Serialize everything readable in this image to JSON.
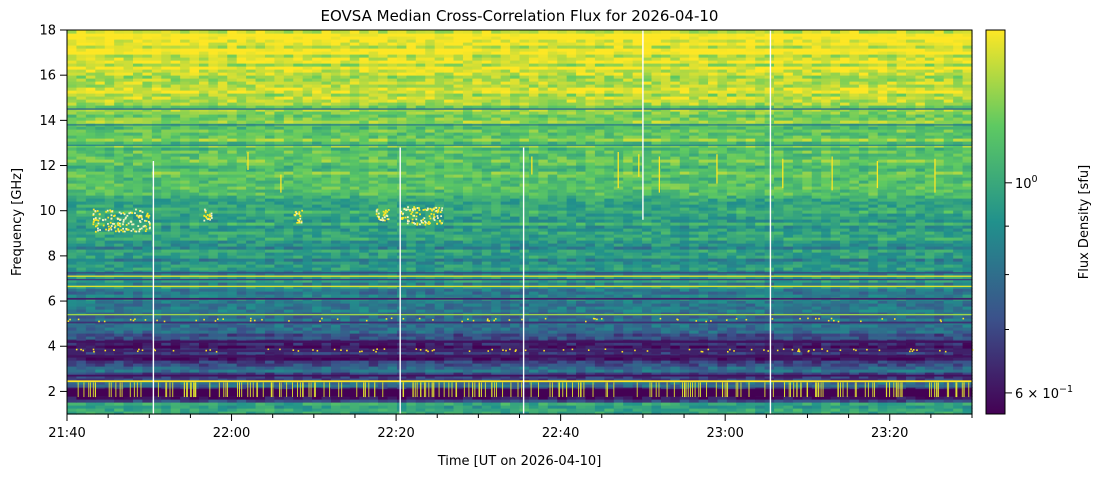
{
  "chart_data": {
    "type": "heatmap",
    "title": "EOVSA Median Cross-Correlation Flux for 2026-04-10",
    "xlabel": "Time [UT on 2026-04-10]",
    "ylabel": "Frequency [GHz]",
    "colorbar_label": "Flux Density [sfu]",
    "colormap": "viridis",
    "colormap_colors": [
      "#440154",
      "#3b528b",
      "#21918c",
      "#5ec962",
      "#fde725"
    ],
    "x_start_minutes": 1300,
    "x_end_minutes": 1410,
    "x_ticks": [
      {
        "minutes": 1300,
        "label": "21:40"
      },
      {
        "minutes": 1320,
        "label": "22:00"
      },
      {
        "minutes": 1340,
        "label": "22:20"
      },
      {
        "minutes": 1360,
        "label": "22:40"
      },
      {
        "minutes": 1380,
        "label": "23:00"
      },
      {
        "minutes": 1400,
        "label": "23:20"
      }
    ],
    "x_minor_step_minutes": 5,
    "ylim": [
      1.0,
      18.0
    ],
    "y_ticks": [
      {
        "value": 2,
        "label": "2"
      },
      {
        "value": 4,
        "label": "4"
      },
      {
        "value": 6,
        "label": "6"
      },
      {
        "value": 8,
        "label": "8"
      },
      {
        "value": 10,
        "label": "10"
      },
      {
        "value": 12,
        "label": "12"
      },
      {
        "value": 14,
        "label": "14"
      },
      {
        "value": 16,
        "label": "16"
      },
      {
        "value": 18,
        "label": "18"
      }
    ],
    "colorbar_range": [
      0.57,
      1.45
    ],
    "colorbar_scale": "log",
    "colorbar_ticks": [
      {
        "value": 0.6,
        "base": "6 × 10",
        "exp": "−1"
      },
      {
        "value": 1.0,
        "base": "10",
        "exp": "0"
      }
    ],
    "colorbar_minor_ticks": [
      0.7,
      0.8,
      0.9
    ],
    "frequency_profile": [
      {
        "freq": 1.0,
        "level": 0.55
      },
      {
        "freq": 1.4,
        "level": 0.62
      },
      {
        "freq": 1.6,
        "level": 0.3
      },
      {
        "freq": 1.8,
        "level": 0.05
      },
      {
        "freq": 2.1,
        "level": 0.05
      },
      {
        "freq": 2.3,
        "level": 0.5
      },
      {
        "freq": 2.6,
        "level": 0.2
      },
      {
        "freq": 3.0,
        "level": 0.38
      },
      {
        "freq": 3.5,
        "level": 0.1
      },
      {
        "freq": 4.0,
        "level": 0.08
      },
      {
        "freq": 4.5,
        "level": 0.3
      },
      {
        "freq": 5.5,
        "level": 0.42
      },
      {
        "freq": 6.5,
        "level": 0.45
      },
      {
        "freq": 7.0,
        "level": 0.5
      },
      {
        "freq": 8.0,
        "level": 0.5
      },
      {
        "freq": 9.0,
        "level": 0.55
      },
      {
        "freq": 10.0,
        "level": 0.62
      },
      {
        "freq": 11.0,
        "level": 0.68
      },
      {
        "freq": 12.0,
        "level": 0.72
      },
      {
        "freq": 13.0,
        "level": 0.75
      },
      {
        "freq": 14.0,
        "level": 0.78
      },
      {
        "freq": 15.0,
        "level": 0.86
      },
      {
        "freq": 16.0,
        "level": 0.92
      },
      {
        "freq": 17.0,
        "level": 0.96
      },
      {
        "freq": 18.0,
        "level": 0.98
      }
    ],
    "horizontal_features": [
      {
        "freq": 1.95,
        "width": 0.3,
        "level": 0.0
      },
      {
        "freq": 2.45,
        "width": 0.08,
        "level": 1.0
      },
      {
        "freq": 2.7,
        "width": 0.08,
        "level": 0.05
      },
      {
        "freq": 3.55,
        "width": 0.1,
        "level": 0.05
      },
      {
        "freq": 3.8,
        "width": 0.12,
        "level": 0.1
      },
      {
        "freq": 4.2,
        "width": 0.1,
        "level": 0.05
      },
      {
        "freq": 5.05,
        "width": 0.08,
        "level": 0.15
      },
      {
        "freq": 5.4,
        "width": 0.06,
        "level": 0.85
      },
      {
        "freq": 6.1,
        "width": 0.08,
        "level": 0.1
      },
      {
        "freq": 6.65,
        "width": 0.06,
        "level": 0.95
      },
      {
        "freq": 6.95,
        "width": 0.06,
        "level": 0.2
      },
      {
        "freq": 7.1,
        "width": 0.06,
        "level": 0.95
      },
      {
        "freq": 7.25,
        "width": 0.05,
        "level": 0.2
      },
      {
        "freq": 14.5,
        "width": 0.06,
        "level": 0.35
      },
      {
        "freq": 13.8,
        "width": 0.05,
        "level": 0.4
      },
      {
        "freq": 12.9,
        "width": 0.05,
        "level": 0.45
      }
    ],
    "rfi_clusters": [
      {
        "start_minutes": 1303,
        "end_minutes": 1310,
        "freq_low": 9.1,
        "freq_high": 10.1
      },
      {
        "start_minutes": 1316.5,
        "end_minutes": 1317.5,
        "freq_low": 9.6,
        "freq_high": 10.1
      },
      {
        "start_minutes": 1327.5,
        "end_minutes": 1328.5,
        "freq_low": 9.5,
        "freq_high": 10.1
      },
      {
        "start_minutes": 1337.5,
        "end_minutes": 1339,
        "freq_low": 9.6,
        "freq_high": 10.1
      },
      {
        "start_minutes": 1340.5,
        "end_minutes": 1345.5,
        "freq_low": 9.4,
        "freq_high": 10.2
      }
    ],
    "rfi_streaks": [
      {
        "minutes": 1322,
        "freq_low": 11.8,
        "freq_high": 12.6
      },
      {
        "minutes": 1367,
        "freq_low": 11.0,
        "freq_high": 12.6
      },
      {
        "minutes": 1369.5,
        "freq_low": 11.5,
        "freq_high": 12.5
      },
      {
        "minutes": 1372,
        "freq_low": 10.8,
        "freq_high": 12.4
      },
      {
        "minutes": 1379,
        "freq_low": 11.2,
        "freq_high": 12.5
      },
      {
        "minutes": 1387,
        "freq_low": 11.0,
        "freq_high": 12.3
      },
      {
        "minutes": 1393,
        "freq_low": 10.9,
        "freq_high": 12.4
      },
      {
        "minutes": 1398.5,
        "freq_low": 11.0,
        "freq_high": 12.2
      },
      {
        "minutes": 1405.5,
        "freq_low": 10.8,
        "freq_high": 12.3
      },
      {
        "minutes": 1356.5,
        "freq_low": 11.6,
        "freq_high": 12.4
      },
      {
        "minutes": 1326,
        "freq_low": 10.8,
        "freq_high": 11.6
      }
    ],
    "data_gaps": [
      {
        "minutes": 1310.5,
        "freq_low": 1.0,
        "freq_high": 12.2
      },
      {
        "minutes": 1340.5,
        "freq_low": 1.0,
        "freq_high": 12.8
      },
      {
        "minutes": 1355.5,
        "freq_low": 1.0,
        "freq_high": 12.8
      },
      {
        "minutes": 1370,
        "freq_low": 9.6,
        "freq_high": 18.0
      },
      {
        "minutes": 1385.5,
        "freq_low": 1.0,
        "freq_high": 18.0
      }
    ]
  }
}
